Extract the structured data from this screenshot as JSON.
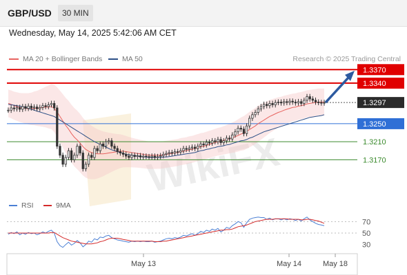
{
  "header": {
    "symbol": "GBP/USD",
    "timeframe": "30 MIN"
  },
  "datetime": "Wednesday, May 14, 2025 5:42:06 AM CET",
  "legend": {
    "ma20_label": "MA 20 + Bollinger Bands",
    "ma20_color": "#e8635f",
    "ma50_label": "MA 50",
    "ma50_color": "#2c4f86",
    "copyright": "Research © 2025 Trading Central"
  },
  "watermark": "WikiFX",
  "chart_data": [
    {
      "type": "candlestick",
      "y_range": [
        1.314,
        1.3375
      ],
      "x_labels": [
        "May 13",
        "May 14",
        "May 18"
      ],
      "current_price": "1.3297",
      "levels": [
        {
          "label": "1.3370",
          "value": 1.337,
          "style": "resistance-badge",
          "color": "#e00000"
        },
        {
          "label": "1.3340",
          "value": 1.334,
          "style": "resistance-badge",
          "color": "#e00000"
        },
        {
          "label": "1.3250",
          "value": 1.325,
          "style": "pivot-badge",
          "color": "#2f6fd6"
        },
        {
          "label": "1.3210",
          "value": 1.321,
          "style": "support-text",
          "color": "#3a8a2c"
        },
        {
          "label": "1.3170",
          "value": 1.317,
          "style": "support-text",
          "color": "#3a8a2c"
        }
      ],
      "closes": [
        1.328,
        1.3285,
        1.3283,
        1.3286,
        1.3282,
        1.3288,
        1.3284,
        1.3289,
        1.3285,
        1.3287,
        1.3283,
        1.3286,
        1.329,
        1.3288,
        1.3292,
        1.3295,
        1.3285,
        1.32,
        1.318,
        1.316,
        1.3175,
        1.319,
        1.317,
        1.318,
        1.32,
        1.3185,
        1.315,
        1.316,
        1.318,
        1.3175,
        1.3195,
        1.319,
        1.3205,
        1.32,
        1.321,
        1.3212,
        1.32,
        1.3195,
        1.3188,
        1.3185,
        1.3182,
        1.3178,
        1.3175,
        1.318,
        1.3177,
        1.3179,
        1.3176,
        1.3178,
        1.3177,
        1.3176,
        1.3178,
        1.3175,
        1.3177,
        1.3179,
        1.3182,
        1.3184,
        1.3186,
        1.3185,
        1.3188,
        1.3187,
        1.319,
        1.3195,
        1.3193,
        1.3196,
        1.3198,
        1.3195,
        1.32,
        1.3205,
        1.3203,
        1.3209,
        1.3207,
        1.3212,
        1.321,
        1.3215,
        1.3208,
        1.3212,
        1.3218,
        1.3216,
        1.3225,
        1.3232,
        1.324,
        1.3238,
        1.3228,
        1.3245,
        1.3262,
        1.327,
        1.3275,
        1.3283,
        1.3288,
        1.3293,
        1.329,
        1.3295,
        1.3292,
        1.3297,
        1.3298,
        1.3296,
        1.3299,
        1.3297,
        1.33,
        1.3298,
        1.3296,
        1.3299,
        1.3295,
        1.3302,
        1.331,
        1.3305,
        1.3302,
        1.3298,
        1.3297,
        1.3296,
        1.3297
      ],
      "ma50": [
        1.3293,
        1.3292,
        1.3291,
        1.329,
        1.3289,
        1.3288,
        1.3286,
        1.3284,
        1.3282,
        1.328,
        1.3278,
        1.3276,
        1.3274,
        1.3272,
        1.327,
        1.3268,
        1.3266,
        1.3262,
        1.3258,
        1.3254,
        1.325,
        1.3246,
        1.3242,
        1.3238,
        1.3234,
        1.323,
        1.3226,
        1.3222,
        1.3218,
        1.3214,
        1.321,
        1.3207,
        1.3204,
        1.3201,
        1.3198,
        1.3195,
        1.3192,
        1.319,
        1.3188,
        1.3186,
        1.3184,
        1.3182,
        1.3181,
        1.318,
        1.3179,
        1.3178,
        1.3177,
        1.3176,
        1.3176,
        1.3175,
        1.3175,
        1.3175,
        1.3175,
        1.3175,
        1.3176,
        1.3176,
        1.3177,
        1.3178,
        1.3179,
        1.318,
        1.3181,
        1.3182,
        1.3183,
        1.3184,
        1.3185,
        1.3186,
        1.3188,
        1.319,
        1.3191,
        1.3193,
        1.3194,
        1.3196,
        1.3197,
        1.3199,
        1.32,
        1.3201,
        1.3203,
        1.3204,
        1.3206,
        1.3208,
        1.321,
        1.3212,
        1.3213,
        1.3215,
        1.3218,
        1.322,
        1.3223,
        1.3226,
        1.3229,
        1.3232,
        1.3234,
        1.3236,
        1.3238,
        1.324,
        1.3242,
        1.3244,
        1.3246,
        1.3248,
        1.325,
        1.3252,
        1.3254,
        1.3256,
        1.3258,
        1.326,
        1.3262,
        1.3264,
        1.3265,
        1.3266,
        1.3267,
        1.3268,
        1.327
      ],
      "ma20": [
        1.3295,
        1.3293,
        1.329,
        1.3288,
        1.3286,
        1.3285,
        1.3284,
        1.3283,
        1.3283,
        1.3284,
        1.3284,
        1.3285,
        1.3286,
        1.3287,
        1.3287,
        1.3288,
        1.3284,
        1.3276,
        1.3266,
        1.3256,
        1.3246,
        1.3238,
        1.3228,
        1.322,
        1.3214,
        1.3207,
        1.3199,
        1.3193,
        1.3189,
        1.3186,
        1.3184,
        1.3183,
        1.3183,
        1.3183,
        1.3184,
        1.3185,
        1.3186,
        1.3187,
        1.3188,
        1.3189,
        1.3189,
        1.3188,
        1.3187,
        1.3186,
        1.3185,
        1.3184,
        1.3183,
        1.3182,
        1.3181,
        1.318,
        1.318,
        1.318,
        1.318,
        1.318,
        1.3181,
        1.3182,
        1.3183,
        1.3184,
        1.3185,
        1.3186,
        1.3188,
        1.3189,
        1.319,
        1.3192,
        1.3193,
        1.3195,
        1.3197,
        1.3199,
        1.32,
        1.3202,
        1.3204,
        1.3206,
        1.3208,
        1.321,
        1.3211,
        1.3213,
        1.3215,
        1.3217,
        1.3219,
        1.3221,
        1.3224,
        1.3227,
        1.3229,
        1.3233,
        1.3237,
        1.3241,
        1.3245,
        1.325,
        1.3254,
        1.3258,
        1.3262,
        1.3266,
        1.3269,
        1.3272,
        1.3275,
        1.3277,
        1.328,
        1.3282,
        1.3284,
        1.3286,
        1.3287,
        1.3289,
        1.329,
        1.3292,
        1.3294,
        1.3295,
        1.3296,
        1.3297,
        1.3298,
        1.3298,
        1.3298
      ],
      "arrow": {
        "from": 1.3297,
        "to": 1.336,
        "direction": "up"
      }
    },
    {
      "type": "line",
      "y_ticks": [
        70,
        50,
        30
      ],
      "y_range": [
        20,
        80
      ],
      "series": [
        {
          "name": "RSI",
          "color": "#4a7fd4",
          "values": [
            48,
            51,
            49,
            52,
            47,
            50,
            48,
            51,
            49,
            50,
            47,
            49,
            52,
            50,
            53,
            55,
            50,
            35,
            28,
            25,
            30,
            34,
            29,
            32,
            37,
            33,
            26,
            30,
            36,
            34,
            40,
            38,
            43,
            42,
            45,
            46,
            42,
            40,
            38,
            37,
            36,
            35,
            34,
            36,
            35,
            36,
            35,
            36,
            35,
            35,
            36,
            34,
            35,
            36,
            38,
            40,
            41,
            40,
            42,
            41,
            43,
            46,
            45,
            47,
            49,
            46,
            49,
            53,
            51,
            55,
            53,
            57,
            55,
            58,
            52,
            55,
            60,
            58,
            63,
            66,
            70,
            68,
            60,
            68,
            74,
            76,
            77,
            78,
            77,
            77,
            74,
            76,
            73,
            75,
            75,
            73,
            75,
            73,
            75,
            74,
            72,
            74,
            71,
            75,
            78,
            73,
            70,
            67,
            65,
            64,
            63
          ]
        },
        {
          "name": "9MA",
          "color": "#d42a2a",
          "values": [
            50,
            50,
            50,
            50,
            50,
            50,
            50,
            50,
            50,
            50,
            50,
            50,
            50,
            50,
            50,
            51,
            51,
            48,
            45,
            42,
            40,
            38,
            36,
            35,
            34,
            33,
            32,
            31,
            31,
            31,
            32,
            33,
            35,
            36,
            38,
            40,
            41,
            41,
            41,
            40,
            39,
            38,
            37,
            36,
            36,
            36,
            36,
            36,
            36,
            36,
            36,
            35,
            35,
            35,
            36,
            36,
            37,
            38,
            39,
            40,
            41,
            42,
            43,
            44,
            45,
            46,
            47,
            48,
            49,
            50,
            51,
            52,
            53,
            54,
            55,
            55,
            56,
            56,
            57,
            59,
            61,
            62,
            63,
            64,
            66,
            68,
            70,
            71,
            72,
            73,
            74,
            74,
            74,
            75,
            75,
            75,
            75,
            75,
            74,
            74,
            74,
            74,
            73,
            73,
            74,
            74,
            73,
            72,
            71,
            69,
            67
          ]
        }
      ]
    }
  ],
  "rsi_legend": {
    "rsi_label": "RSI",
    "ma_label": "9MA"
  }
}
